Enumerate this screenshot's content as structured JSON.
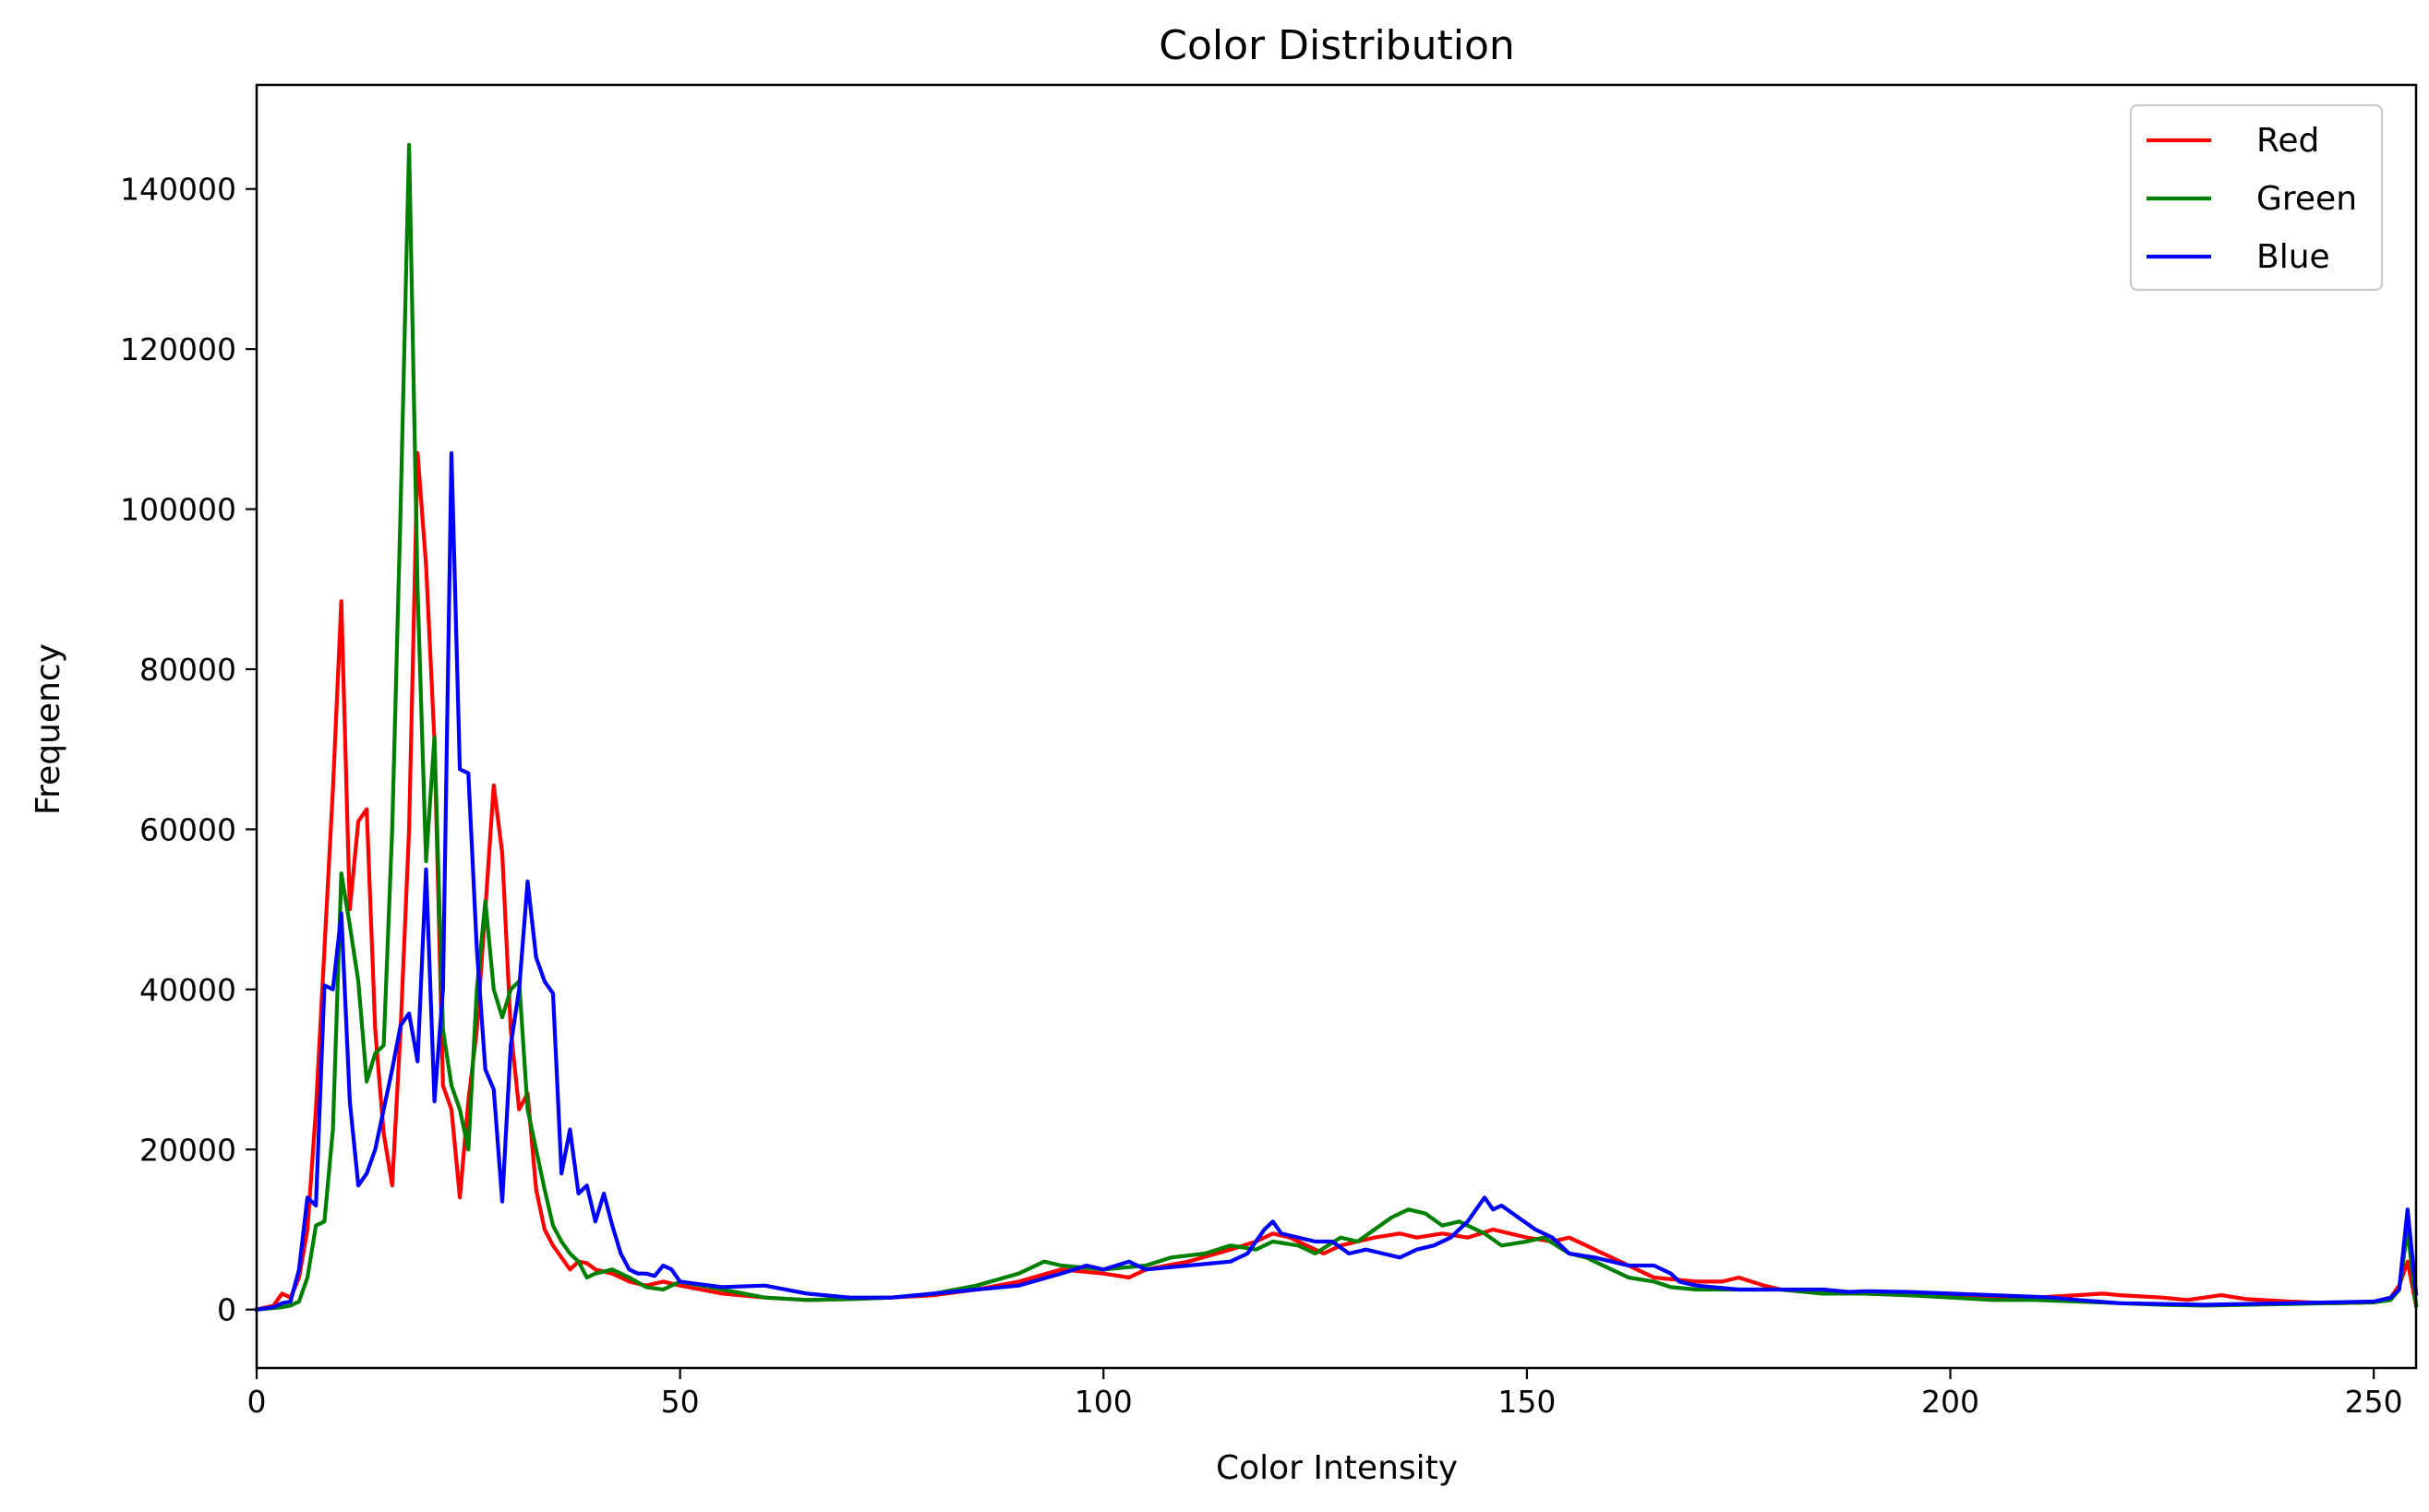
{
  "chart_data": {
    "type": "line",
    "title": "Color Distribution",
    "xlabel": "Color Intensity",
    "ylabel": "Frequency",
    "xlim": [
      0,
      255
    ],
    "ylim": [
      -7300,
      153000
    ],
    "x_ticks": [
      0,
      50,
      100,
      150,
      200,
      250
    ],
    "y_ticks": [
      0,
      20000,
      40000,
      60000,
      80000,
      100000,
      120000,
      140000
    ],
    "grid": false,
    "legend_position": "top-right",
    "series": [
      {
        "name": "Red",
        "color": "#ff0000",
        "points": [
          [
            0,
            0
          ],
          [
            2,
            500
          ],
          [
            3,
            2000
          ],
          [
            4,
            1500
          ],
          [
            5,
            4000
          ],
          [
            6,
            10000
          ],
          [
            7,
            25000
          ],
          [
            8,
            45000
          ],
          [
            9,
            65000
          ],
          [
            10,
            88500
          ],
          [
            11,
            50000
          ],
          [
            12,
            61000
          ],
          [
            13,
            62500
          ],
          [
            14,
            35000
          ],
          [
            15,
            22000
          ],
          [
            16,
            15500
          ],
          [
            17,
            35000
          ],
          [
            18,
            60000
          ],
          [
            19,
            107000
          ],
          [
            20,
            93000
          ],
          [
            21,
            71000
          ],
          [
            22,
            28000
          ],
          [
            23,
            25000
          ],
          [
            24,
            14000
          ],
          [
            25,
            26000
          ],
          [
            26,
            35000
          ],
          [
            27,
            50000
          ],
          [
            28,
            65500
          ],
          [
            29,
            57000
          ],
          [
            30,
            35000
          ],
          [
            31,
            25000
          ],
          [
            32,
            27000
          ],
          [
            33,
            15000
          ],
          [
            34,
            10000
          ],
          [
            35,
            8000
          ],
          [
            36,
            6500
          ],
          [
            37,
            5000
          ],
          [
            38,
            6000
          ],
          [
            39,
            5800
          ],
          [
            40,
            5000
          ],
          [
            42,
            4500
          ],
          [
            44,
            3500
          ],
          [
            46,
            3000
          ],
          [
            48,
            3500
          ],
          [
            50,
            3000
          ],
          [
            55,
            2000
          ],
          [
            60,
            1500
          ],
          [
            65,
            1200
          ],
          [
            70,
            1300
          ],
          [
            75,
            1500
          ],
          [
            80,
            1800
          ],
          [
            85,
            2500
          ],
          [
            90,
            3500
          ],
          [
            95,
            5000
          ],
          [
            100,
            4500
          ],
          [
            103,
            4000
          ],
          [
            105,
            5000
          ],
          [
            110,
            6000
          ],
          [
            115,
            7500
          ],
          [
            118,
            8500
          ],
          [
            120,
            9500
          ],
          [
            122,
            9000
          ],
          [
            124,
            8000
          ],
          [
            126,
            7000
          ],
          [
            128,
            8000
          ],
          [
            130,
            8500
          ],
          [
            132,
            9000
          ],
          [
            135,
            9500
          ],
          [
            137,
            9000
          ],
          [
            140,
            9500
          ],
          [
            143,
            9000
          ],
          [
            146,
            10000
          ],
          [
            148,
            9500
          ],
          [
            150,
            9000
          ],
          [
            153,
            8500
          ],
          [
            155,
            9000
          ],
          [
            158,
            7500
          ],
          [
            160,
            6500
          ],
          [
            163,
            5000
          ],
          [
            165,
            4000
          ],
          [
            170,
            3500
          ],
          [
            173,
            3500
          ],
          [
            175,
            4000
          ],
          [
            178,
            3000
          ],
          [
            180,
            2500
          ],
          [
            185,
            2000
          ],
          [
            190,
            2000
          ],
          [
            195,
            1800
          ],
          [
            200,
            1700
          ],
          [
            205,
            1500
          ],
          [
            210,
            1500
          ],
          [
            215,
            1800
          ],
          [
            218,
            2000
          ],
          [
            220,
            1800
          ],
          [
            225,
            1500
          ],
          [
            228,
            1200
          ],
          [
            230,
            1500
          ],
          [
            232,
            1800
          ],
          [
            235,
            1300
          ],
          [
            240,
            1000
          ],
          [
            245,
            800
          ],
          [
            250,
            900
          ],
          [
            252,
            1500
          ],
          [
            253,
            3000
          ],
          [
            254,
            6000
          ],
          [
            255,
            500
          ]
        ]
      },
      {
        "name": "Green",
        "color": "#008000",
        "points": [
          [
            0,
            0
          ],
          [
            3,
            300
          ],
          [
            4,
            500
          ],
          [
            5,
            1000
          ],
          [
            6,
            4000
          ],
          [
            7,
            10500
          ],
          [
            8,
            11000
          ],
          [
            9,
            22500
          ],
          [
            10,
            54500
          ],
          [
            11,
            48000
          ],
          [
            12,
            41000
          ],
          [
            13,
            28500
          ],
          [
            14,
            32000
          ],
          [
            15,
            33000
          ],
          [
            16,
            60000
          ],
          [
            17,
            100000
          ],
          [
            18,
            145500
          ],
          [
            19,
            90000
          ],
          [
            20,
            56000
          ],
          [
            21,
            71500
          ],
          [
            22,
            35000
          ],
          [
            23,
            28000
          ],
          [
            24,
            25000
          ],
          [
            25,
            20000
          ],
          [
            26,
            40000
          ],
          [
            27,
            51000
          ],
          [
            28,
            40000
          ],
          [
            29,
            36500
          ],
          [
            30,
            40000
          ],
          [
            31,
            41000
          ],
          [
            32,
            25000
          ],
          [
            33,
            20000
          ],
          [
            34,
            15000
          ],
          [
            35,
            10500
          ],
          [
            36,
            8500
          ],
          [
            37,
            7000
          ],
          [
            38,
            6000
          ],
          [
            39,
            4000
          ],
          [
            40,
            4500
          ],
          [
            42,
            5000
          ],
          [
            44,
            4000
          ],
          [
            46,
            2800
          ],
          [
            48,
            2500
          ],
          [
            50,
            3500
          ],
          [
            55,
            2500
          ],
          [
            60,
            1500
          ],
          [
            65,
            1200
          ],
          [
            70,
            1300
          ],
          [
            75,
            1500
          ],
          [
            80,
            2000
          ],
          [
            85,
            3000
          ],
          [
            90,
            4500
          ],
          [
            93,
            6000
          ],
          [
            95,
            5500
          ],
          [
            100,
            5000
          ],
          [
            105,
            5500
          ],
          [
            108,
            6500
          ],
          [
            112,
            7000
          ],
          [
            115,
            8000
          ],
          [
            118,
            7500
          ],
          [
            120,
            8500
          ],
          [
            123,
            8000
          ],
          [
            125,
            7000
          ],
          [
            128,
            9000
          ],
          [
            130,
            8500
          ],
          [
            132,
            10000
          ],
          [
            134,
            11500
          ],
          [
            136,
            12500
          ],
          [
            138,
            12000
          ],
          [
            140,
            10500
          ],
          [
            142,
            11000
          ],
          [
            145,
            9500
          ],
          [
            147,
            8000
          ],
          [
            150,
            8500
          ],
          [
            152,
            9000
          ],
          [
            155,
            7000
          ],
          [
            157,
            6500
          ],
          [
            160,
            5000
          ],
          [
            162,
            4000
          ],
          [
            165,
            3500
          ],
          [
            167,
            2800
          ],
          [
            170,
            2500
          ],
          [
            175,
            2500
          ],
          [
            180,
            2500
          ],
          [
            185,
            2000
          ],
          [
            190,
            2000
          ],
          [
            195,
            1800
          ],
          [
            200,
            1500
          ],
          [
            205,
            1200
          ],
          [
            210,
            1200
          ],
          [
            215,
            1000
          ],
          [
            220,
            800
          ],
          [
            225,
            600
          ],
          [
            230,
            500
          ],
          [
            235,
            600
          ],
          [
            240,
            700
          ],
          [
            245,
            800
          ],
          [
            250,
            900
          ],
          [
            252,
            1200
          ],
          [
            253,
            2500
          ],
          [
            254,
            10000
          ],
          [
            255,
            500
          ]
        ]
      },
      {
        "name": "Blue",
        "color": "#0000ff",
        "points": [
          [
            0,
            0
          ],
          [
            2,
            300
          ],
          [
            3,
            800
          ],
          [
            4,
            1000
          ],
          [
            5,
            5000
          ],
          [
            6,
            14000
          ],
          [
            7,
            13000
          ],
          [
            8,
            40500
          ],
          [
            9,
            40000
          ],
          [
            10,
            49500
          ],
          [
            11,
            26000
          ],
          [
            12,
            15500
          ],
          [
            13,
            17000
          ],
          [
            14,
            20000
          ],
          [
            15,
            25000
          ],
          [
            16,
            30000
          ],
          [
            17,
            35500
          ],
          [
            18,
            37000
          ],
          [
            19,
            31000
          ],
          [
            20,
            55000
          ],
          [
            21,
            26000
          ],
          [
            22,
            40000
          ],
          [
            23,
            107000
          ],
          [
            24,
            67500
          ],
          [
            25,
            67000
          ],
          [
            26,
            45000
          ],
          [
            27,
            30000
          ],
          [
            28,
            27500
          ],
          [
            29,
            13500
          ],
          [
            30,
            33000
          ],
          [
            31,
            40000
          ],
          [
            32,
            53500
          ],
          [
            33,
            44000
          ],
          [
            34,
            41000
          ],
          [
            35,
            39500
          ],
          [
            36,
            17000
          ],
          [
            37,
            22500
          ],
          [
            38,
            14500
          ],
          [
            39,
            15500
          ],
          [
            40,
            11000
          ],
          [
            41,
            14500
          ],
          [
            42,
            10500
          ],
          [
            43,
            7000
          ],
          [
            44,
            5000
          ],
          [
            45,
            4500
          ],
          [
            46,
            4500
          ],
          [
            47,
            4200
          ],
          [
            48,
            5500
          ],
          [
            49,
            5000
          ],
          [
            50,
            3500
          ],
          [
            55,
            2800
          ],
          [
            60,
            3000
          ],
          [
            65,
            2000
          ],
          [
            70,
            1500
          ],
          [
            75,
            1500
          ],
          [
            80,
            2000
          ],
          [
            85,
            2500
          ],
          [
            90,
            3000
          ],
          [
            95,
            4500
          ],
          [
            98,
            5500
          ],
          [
            100,
            5000
          ],
          [
            103,
            6000
          ],
          [
            105,
            5000
          ],
          [
            110,
            5500
          ],
          [
            115,
            6000
          ],
          [
            117,
            7000
          ],
          [
            119,
            10000
          ],
          [
            120,
            11000
          ],
          [
            121,
            9500
          ],
          [
            123,
            9000
          ],
          [
            125,
            8500
          ],
          [
            127,
            8500
          ],
          [
            129,
            7000
          ],
          [
            131,
            7500
          ],
          [
            133,
            7000
          ],
          [
            135,
            6500
          ],
          [
            137,
            7500
          ],
          [
            139,
            8000
          ],
          [
            141,
            9000
          ],
          [
            143,
            11000
          ],
          [
            145,
            14000
          ],
          [
            146,
            12500
          ],
          [
            147,
            13000
          ],
          [
            149,
            11500
          ],
          [
            151,
            10000
          ],
          [
            153,
            9000
          ],
          [
            155,
            7000
          ],
          [
            158,
            6500
          ],
          [
            160,
            6000
          ],
          [
            162,
            5500
          ],
          [
            165,
            5500
          ],
          [
            167,
            4500
          ],
          [
            168,
            3500
          ],
          [
            170,
            3000
          ],
          [
            175,
            2500
          ],
          [
            180,
            2500
          ],
          [
            185,
            2500
          ],
          [
            188,
            2200
          ],
          [
            190,
            2300
          ],
          [
            195,
            2200
          ],
          [
            200,
            2000
          ],
          [
            205,
            1800
          ],
          [
            210,
            1600
          ],
          [
            212,
            1500
          ],
          [
            215,
            1200
          ],
          [
            220,
            800
          ],
          [
            225,
            700
          ],
          [
            230,
            600
          ],
          [
            235,
            700
          ],
          [
            240,
            800
          ],
          [
            245,
            900
          ],
          [
            250,
            1000
          ],
          [
            252,
            1500
          ],
          [
            253,
            2500
          ],
          [
            254,
            12500
          ],
          [
            255,
            2000
          ]
        ]
      }
    ]
  }
}
